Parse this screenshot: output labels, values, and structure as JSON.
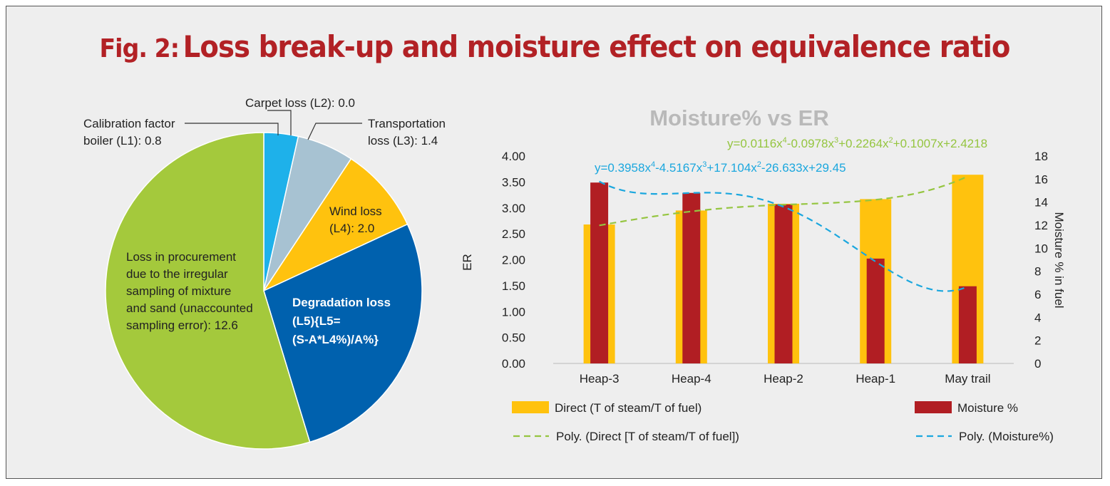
{
  "figure": {
    "number_label": "Fig. 2:",
    "title": "Loss break-up and moisture effect on equivalence ratio"
  },
  "chart_data": [
    {
      "type": "pie",
      "title": "",
      "slices": [
        {
          "name": "Carpet loss (L2)",
          "value": 0.0,
          "label_lines": [
            "Carpet loss (L2): 0.0"
          ],
          "color": "#1a9ad6"
        },
        {
          "name": "Transportation loss (L3)",
          "value": 1.4,
          "label_lines": [
            "Transportation",
            "loss (L3): 1.4"
          ],
          "color": "#a7c2d2"
        },
        {
          "name": "Wind loss (L4)",
          "value": 2.0,
          "label_lines": [
            "Wind loss",
            "(L4): 2.0"
          ],
          "color": "#ffc20e"
        },
        {
          "name": "Degradation loss",
          "value": null,
          "label_lines": [
            "Degradation loss",
            "(L5){L5=",
            "(S-A*L4%)/A%}"
          ],
          "color": "#0061ae"
        },
        {
          "name": "Loss in procurement",
          "value": 12.6,
          "label_lines": [
            "Loss in procurement",
            "due to the irregular",
            "sampling of mixture",
            "and sand (unaccounted",
            "sampling error): 12.6"
          ],
          "color": "#a4c93c"
        },
        {
          "name": "Calibration factor boiler (L1)",
          "value": 0.8,
          "label_lines": [
            "Calibration factor",
            "boiler (L1): 0.8"
          ],
          "color": "#1eb1ea"
        }
      ],
      "visual_fractions": [
        0.035,
        0.058,
        0.088,
        0.272,
        0.547
      ]
    },
    {
      "type": "bar",
      "title": "Moisture% vs ER",
      "categories": [
        "Heap-3",
        "Heap-4",
        "Heap-2",
        "Heap-1",
        "May trail"
      ],
      "ylabel": "ER",
      "ylabel_right": "Moisture % in fuel",
      "ylim": [
        0,
        4
      ],
      "ylim_right": [
        0,
        18
      ],
      "y_ticks": [
        "0.00",
        "0.50",
        "1.00",
        "1.50",
        "2.00",
        "2.50",
        "3.00",
        "3.50",
        "4.00"
      ],
      "y_ticks_right": [
        "0",
        "2",
        "4",
        "6",
        "8",
        "10",
        "12",
        "14",
        "16",
        "18"
      ],
      "series": [
        {
          "name": "Direct (T of steam/T of fuel)",
          "axis": "left",
          "color": "#ffc20e",
          "values": [
            2.68,
            2.95,
            3.08,
            3.17,
            3.64
          ]
        },
        {
          "name": "Moisture %",
          "axis": "right",
          "color": "#b11e23",
          "values": [
            15.7,
            14.8,
            13.8,
            9.1,
            6.7
          ]
        }
      ],
      "trendlines": [
        {
          "name": "Poly. (Direct [T of steam/T of fuel])",
          "color": "#95c540",
          "equation": "y=0.0116x4-0.0978x3+0.2264x2+0.1007x+2.4218",
          "coef": [
            0.0116,
            -0.0978,
            0.2264,
            0.1007,
            2.4218
          ],
          "axis": "left"
        },
        {
          "name": "Poly. (Moisture%)",
          "color": "#1ba7de",
          "equation": "y=0.3958x4-4.5167x3+17.104x2-26.633x+29.45",
          "coef": [
            0.3958,
            -4.5167,
            17.104,
            -26.633,
            29.45
          ],
          "axis": "right"
        }
      ],
      "legend": [
        {
          "label": "Direct (T of steam/T of fuel)",
          "kind": "box",
          "color": "#ffc20e"
        },
        {
          "label": "Moisture %",
          "kind": "box",
          "color": "#b11e23"
        },
        {
          "label": "Poly. (Direct [T of steam/T of fuel])",
          "kind": "dash",
          "color": "#95c540"
        },
        {
          "label": "Poly. (Moisture%)",
          "kind": "dash",
          "color": "#1ba7de"
        }
      ]
    }
  ]
}
